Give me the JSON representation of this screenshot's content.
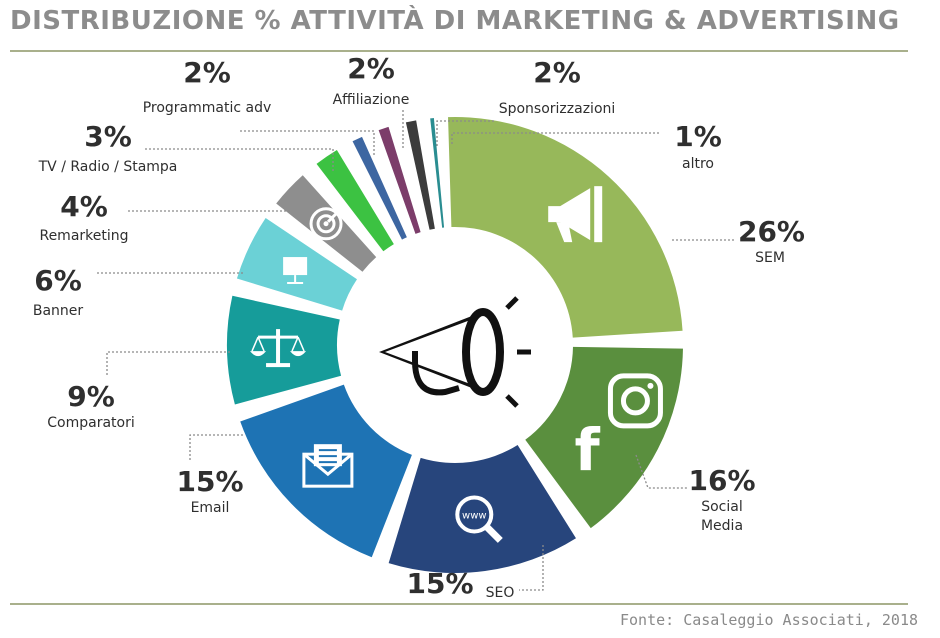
{
  "title": "DISTRIBUZIONE % ATTIVITÀ DI MARKETING & ADVERTISING",
  "source": "Fonte: Casaleggio Associati, 2018",
  "chart_data": {
    "type": "pie",
    "donut": true,
    "title": "DISTRIBUZIONE % ATTIVITÀ DI MARKETING & ADVERTISING",
    "unit": "%",
    "slices": [
      {
        "key": "sem",
        "label": "SEM",
        "value": 26,
        "pct_text": "26%",
        "color": "#97b85a",
        "icon": "megaphone-icon"
      },
      {
        "key": "social",
        "label": "Social\nMedia",
        "value": 16,
        "pct_text": "16%",
        "color": "#5a8f3e",
        "icon": "facebook-instagram-icon"
      },
      {
        "key": "seo",
        "label": "SEO",
        "value": 15,
        "pct_text": "15%",
        "color": "#27457c",
        "icon": "search-www-icon"
      },
      {
        "key": "email",
        "label": "Email",
        "value": 15,
        "pct_text": "15%",
        "color": "#1e73b4",
        "icon": "envelope-icon"
      },
      {
        "key": "comparatori",
        "label": "Comparatori",
        "value": 9,
        "pct_text": "9%",
        "color": "#169c9a",
        "icon": "scales-icon"
      },
      {
        "key": "banner",
        "label": "Banner",
        "value": 6,
        "pct_text": "6%",
        "color": "#6bd1d6",
        "icon": "billboard-icon"
      },
      {
        "key": "remarketing",
        "label": "Remarketing",
        "value": 4,
        "pct_text": "4%",
        "color": "#8e8e8e",
        "icon": "target-icon"
      },
      {
        "key": "tv",
        "label": "TV / Radio / Stampa",
        "value": 3,
        "pct_text": "3%",
        "color": "#3cc242",
        "icon": ""
      },
      {
        "key": "programmatic",
        "label": "Programmatic adv",
        "value": 2,
        "pct_text": "2%",
        "color": "#3d66a1",
        "icon": ""
      },
      {
        "key": "affiliazione",
        "label": "Affiliazione",
        "value": 2,
        "pct_text": "2%",
        "color": "#7c3d6a",
        "icon": ""
      },
      {
        "key": "sponsor",
        "label": "Sponsorizzazioni",
        "value": 2,
        "pct_text": "2%",
        "color": "#3c3c3c",
        "icon": ""
      },
      {
        "key": "altro",
        "label": "altro",
        "value": 1,
        "pct_text": "1%",
        "color": "#2a8d91",
        "icon": ""
      }
    ],
    "center_icon": "megaphone-outline-icon",
    "legend": "none"
  }
}
